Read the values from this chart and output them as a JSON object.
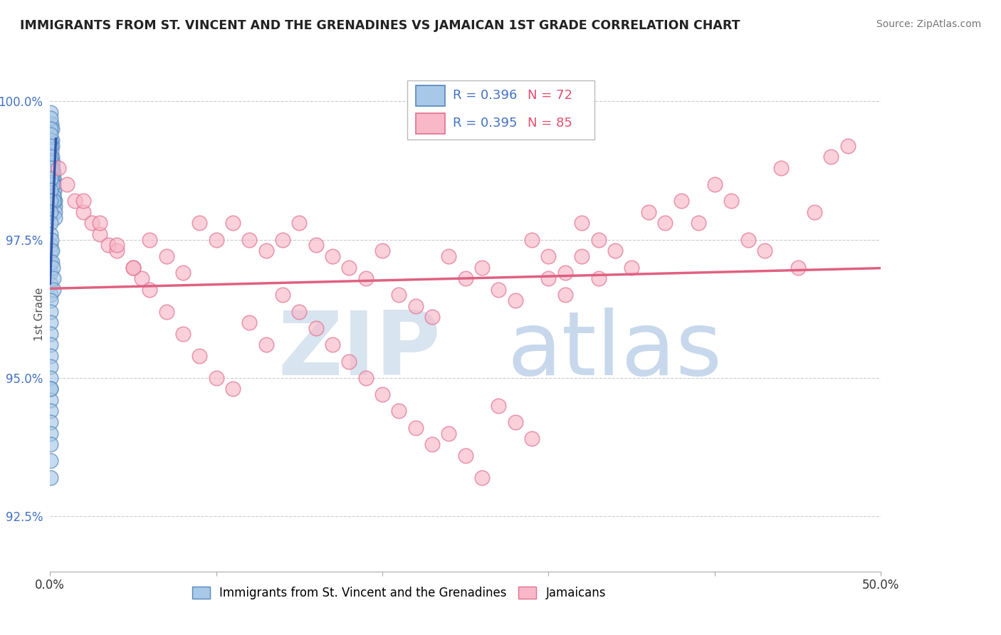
{
  "title": "IMMIGRANTS FROM ST. VINCENT AND THE GRENADINES VS JAMAICAN 1ST GRADE CORRELATION CHART",
  "source": "Source: ZipAtlas.com",
  "ylabel": "1st Grade",
  "xlim": [
    0.0,
    50.0
  ],
  "ylim": [
    91.5,
    100.8
  ],
  "yticks": [
    92.5,
    95.0,
    97.5,
    100.0
  ],
  "xtick_labels": [
    "0.0%",
    "",
    "",
    "",
    "",
    "50.0%"
  ],
  "ytick_labels": [
    "92.5%",
    "95.0%",
    "97.5%",
    "100.0%"
  ],
  "blue_color": "#A8C8E8",
  "blue_edge": "#5588BB",
  "pink_color": "#F8B8C8",
  "pink_edge": "#E07090",
  "trend_blue": "#3355AA",
  "trend_pink": "#E06080",
  "legend_r_blue": "R = 0.396",
  "legend_n_blue": "N = 72",
  "legend_r_pink": "R = 0.395",
  "legend_n_pink": "N = 85",
  "legend_label_blue": "Immigrants from St. Vincent and the Grenadines",
  "legend_label_pink": "Jamaicans",
  "grid_color": "#CCCCCC",
  "blue_x": [
    0.05,
    0.08,
    0.1,
    0.1,
    0.12,
    0.12,
    0.15,
    0.15,
    0.15,
    0.18,
    0.18,
    0.2,
    0.2,
    0.2,
    0.22,
    0.22,
    0.25,
    0.25,
    0.28,
    0.3,
    0.3,
    0.3,
    0.05,
    0.05,
    0.05,
    0.08,
    0.08,
    0.1,
    0.12,
    0.12,
    0.15,
    0.18,
    0.2,
    0.05,
    0.05,
    0.05,
    0.05,
    0.05,
    0.05,
    0.05,
    0.05,
    0.05,
    0.05,
    0.05,
    0.05,
    0.05,
    0.05,
    0.05,
    0.05,
    0.08,
    0.1,
    0.12,
    0.15,
    0.18,
    0.2,
    0.05,
    0.05,
    0.05,
    0.05,
    0.05,
    0.05,
    0.05,
    0.05,
    0.05,
    0.05,
    0.05,
    0.05,
    0.05,
    0.05,
    0.05,
    0.05,
    0.05
  ],
  "blue_y": [
    99.8,
    99.6,
    99.5,
    99.3,
    99.2,
    99.0,
    98.9,
    98.8,
    98.7,
    98.7,
    98.6,
    98.6,
    98.5,
    98.4,
    98.5,
    98.3,
    98.4,
    98.2,
    98.1,
    98.2,
    98.0,
    97.9,
    99.7,
    99.5,
    99.3,
    99.1,
    98.9,
    98.8,
    98.7,
    98.6,
    98.5,
    98.3,
    98.2,
    99.4,
    99.2,
    99.0,
    98.8,
    98.6,
    98.4,
    98.2,
    98.0,
    97.8,
    97.6,
    97.4,
    97.3,
    97.1,
    96.9,
    96.7,
    96.5,
    97.5,
    97.3,
    97.1,
    97.0,
    96.8,
    96.6,
    96.4,
    96.2,
    96.0,
    95.8,
    95.6,
    95.4,
    95.2,
    95.0,
    94.8,
    94.6,
    94.4,
    94.2,
    94.0,
    93.8,
    93.5,
    94.8,
    93.2
  ],
  "pink_x": [
    0.5,
    1.0,
    1.5,
    2.0,
    2.5,
    3.0,
    3.5,
    4.0,
    5.0,
    5.5,
    6.0,
    7.0,
    8.0,
    9.0,
    10.0,
    11.0,
    12.0,
    13.0,
    14.0,
    15.0,
    16.0,
    17.0,
    18.0,
    19.0,
    20.0,
    21.0,
    22.0,
    23.0,
    24.0,
    25.0,
    26.0,
    27.0,
    28.0,
    29.0,
    30.0,
    31.0,
    32.0,
    33.0,
    34.0,
    35.0,
    36.0,
    37.0,
    38.0,
    39.0,
    40.0,
    41.0,
    42.0,
    43.0,
    44.0,
    45.0,
    46.0,
    47.0,
    48.0,
    2.0,
    3.0,
    4.0,
    5.0,
    6.0,
    7.0,
    8.0,
    9.0,
    10.0,
    11.0,
    12.0,
    13.0,
    14.0,
    15.0,
    16.0,
    17.0,
    18.0,
    19.0,
    20.0,
    21.0,
    22.0,
    23.0,
    24.0,
    25.0,
    26.0,
    27.0,
    28.0,
    29.0,
    30.0,
    31.0,
    32.0,
    33.0
  ],
  "pink_y": [
    98.8,
    98.5,
    98.2,
    98.0,
    97.8,
    97.6,
    97.4,
    97.3,
    97.0,
    96.8,
    97.5,
    97.2,
    96.9,
    97.8,
    97.5,
    97.8,
    97.5,
    97.3,
    97.5,
    97.8,
    97.4,
    97.2,
    97.0,
    96.8,
    97.3,
    96.5,
    96.3,
    96.1,
    97.2,
    96.8,
    97.0,
    96.6,
    96.4,
    97.5,
    97.2,
    96.9,
    97.8,
    97.5,
    97.3,
    97.0,
    98.0,
    97.8,
    98.2,
    97.8,
    98.5,
    98.2,
    97.5,
    97.3,
    98.8,
    97.0,
    98.0,
    99.0,
    99.2,
    98.2,
    97.8,
    97.4,
    97.0,
    96.6,
    96.2,
    95.8,
    95.4,
    95.0,
    94.8,
    96.0,
    95.6,
    96.5,
    96.2,
    95.9,
    95.6,
    95.3,
    95.0,
    94.7,
    94.4,
    94.1,
    93.8,
    94.0,
    93.6,
    93.2,
    94.5,
    94.2,
    93.9,
    96.8,
    96.5,
    97.2,
    96.8
  ]
}
